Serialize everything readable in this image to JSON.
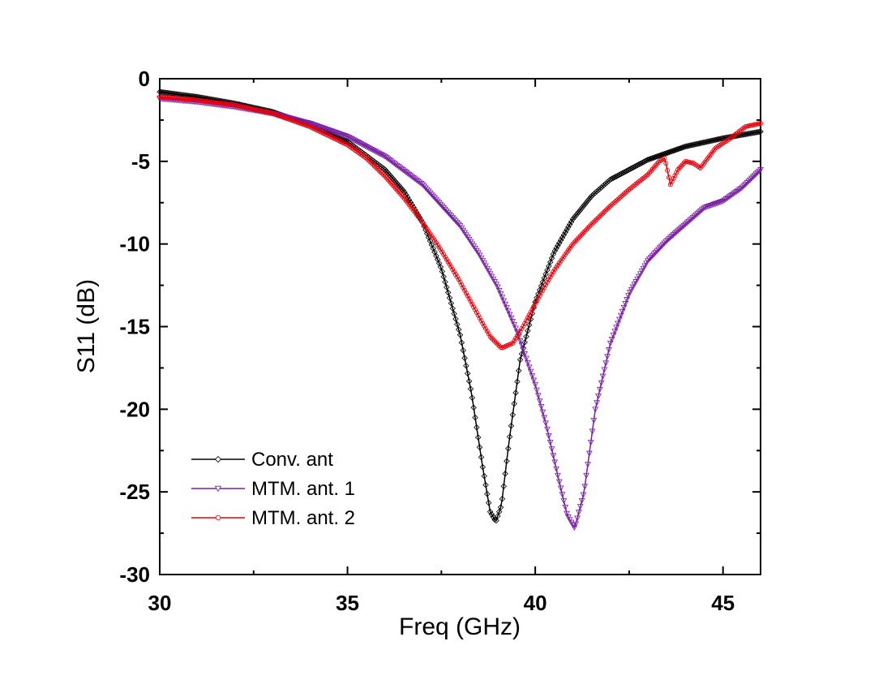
{
  "chart_data": {
    "type": "line",
    "title": "",
    "xlabel": "Freq (GHz)",
    "ylabel": "S11 (dB)",
    "xlim": [
      30,
      46
    ],
    "ylim": [
      -30,
      0
    ],
    "xticks": [
      30,
      35,
      40,
      45
    ],
    "yticks": [
      0,
      -5,
      -10,
      -15,
      -20,
      -25,
      -30
    ],
    "xtick_labels": [
      "30",
      "35",
      "40",
      "45"
    ],
    "ytick_labels": [
      "0",
      "-5",
      "-10",
      "-15",
      "-20",
      "-25",
      "-30"
    ],
    "grid": false,
    "legend_position": "bottom-left",
    "series": [
      {
        "name": "Conv. ant",
        "color": "#000000",
        "marker": "diamond",
        "x": [
          30,
          31,
          32,
          33,
          34,
          35,
          36,
          36.5,
          37,
          37.5,
          38,
          38.3,
          38.6,
          38.8,
          38.95,
          39.1,
          39.3,
          39.6,
          40,
          40.5,
          41,
          41.5,
          42,
          43,
          44,
          45,
          46
        ],
        "y": [
          -0.8,
          -1.1,
          -1.5,
          -2.0,
          -2.8,
          -3.8,
          -5.5,
          -6.8,
          -8.7,
          -11.5,
          -15.5,
          -19,
          -23.5,
          -26.2,
          -26.8,
          -25.8,
          -22,
          -17,
          -13.5,
          -10.5,
          -8.5,
          -7.1,
          -6.1,
          -4.9,
          -4.1,
          -3.6,
          -3.2
        ]
      },
      {
        "name": "MTM. ant. 1",
        "color": "#7a1fa2",
        "marker": "triangle-down",
        "x": [
          30,
          31,
          32,
          33,
          34,
          35,
          36,
          37,
          38,
          38.5,
          39,
          39.5,
          40,
          40.3,
          40.6,
          40.85,
          41.05,
          41.3,
          41.6,
          42,
          42.5,
          43,
          43.5,
          44,
          44.5,
          45,
          45.5,
          46
        ],
        "y": [
          -1.2,
          -1.4,
          -1.7,
          -2.1,
          -2.7,
          -3.5,
          -4.7,
          -6.4,
          -8.9,
          -10.6,
          -12.6,
          -15.2,
          -18.5,
          -21,
          -24,
          -26.4,
          -27.2,
          -25,
          -20,
          -16,
          -13,
          -11,
          -9.8,
          -8.8,
          -7.8,
          -7.4,
          -6.6,
          -5.5
        ]
      },
      {
        "name": "MTM. ant. 2",
        "color": "#e8000b",
        "marker": "circle",
        "x": [
          30,
          31,
          32,
          33,
          34,
          35,
          35.5,
          36,
          36.5,
          37,
          37.5,
          38,
          38.5,
          38.8,
          39.1,
          39.4,
          39.7,
          40,
          40.5,
          41,
          41.5,
          42,
          42.5,
          43,
          43.3,
          43.45,
          43.6,
          43.8,
          44,
          44.2,
          44.4,
          44.8,
          45.2,
          45.6,
          46
        ],
        "y": [
          -1.1,
          -1.3,
          -1.6,
          -2.1,
          -2.9,
          -4.0,
          -4.8,
          -5.9,
          -7.2,
          -8.7,
          -10.4,
          -12.3,
          -14.4,
          -15.6,
          -16.3,
          -16.0,
          -14.9,
          -13.6,
          -11.6,
          -10.0,
          -8.8,
          -7.7,
          -6.7,
          -5.8,
          -5.0,
          -4.8,
          -6.4,
          -5.5,
          -5.0,
          -5.1,
          -5.4,
          -4.2,
          -3.6,
          -2.9,
          -2.7
        ]
      }
    ]
  }
}
